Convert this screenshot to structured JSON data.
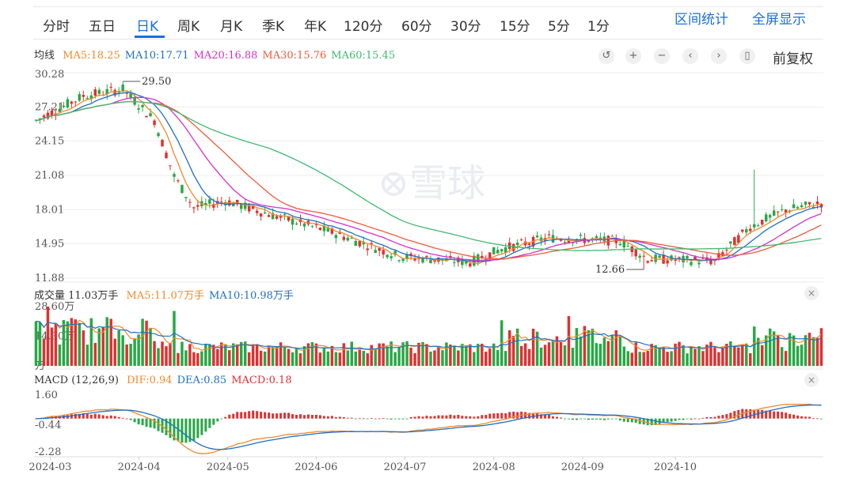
{
  "tabs": [
    {
      "label": "分时",
      "active": false
    },
    {
      "label": "五日",
      "active": false
    },
    {
      "label": "日K",
      "active": true
    },
    {
      "label": "周K",
      "active": false
    },
    {
      "label": "月K",
      "active": false
    },
    {
      "label": "季K",
      "active": false
    },
    {
      "label": "年K",
      "active": false
    },
    {
      "label": "120分",
      "active": false
    },
    {
      "label": "60分",
      "active": false
    },
    {
      "label": "30分",
      "active": false
    },
    {
      "label": "15分",
      "active": false
    },
    {
      "label": "5分",
      "active": false
    },
    {
      "label": "1分",
      "active": false
    }
  ],
  "right_tabs": {
    "interval_stats": "区间统计",
    "fullscreen": "全屏显示"
  },
  "ma_legend": {
    "title": "均线",
    "items": [
      {
        "text": "MA5:18.25",
        "color": "#f08a2c"
      },
      {
        "text": "MA10:17.71",
        "color": "#1f6fc5"
      },
      {
        "text": "MA20:16.88",
        "color": "#d82fc8"
      },
      {
        "text": "MA30:15.76",
        "color": "#ee5a3c"
      },
      {
        "text": "MA60:15.45",
        "color": "#3fba6e"
      }
    ]
  },
  "controls": {
    "icons": [
      "undo-icon",
      "zoom-in-icon",
      "zoom-out-icon",
      "chevron-left-icon",
      "chevron-right-icon",
      "adjust-icon"
    ],
    "glyphs": [
      "↺",
      "+",
      "−",
      "‹",
      "›",
      "▯"
    ],
    "adjust_label": "前复权"
  },
  "vol_legend": {
    "title": "成交量 11.03万手",
    "items": [
      {
        "text": "MA5:11.07万手",
        "color": "#f08a2c"
      },
      {
        "text": "MA10:10.98万手",
        "color": "#1f6fc5"
      }
    ]
  },
  "macd_legend": {
    "title": "MACD (12,26,9)",
    "items": [
      {
        "text": "DIF:0.94",
        "color": "#f08a2c"
      },
      {
        "text": "DEA:0.85",
        "color": "#1f6fc5"
      },
      {
        "text": "MACD:0.18",
        "color": "#e03030"
      }
    ]
  },
  "close_glyph": "×",
  "watermark": "雪球",
  "colors": {
    "up": "#e03030",
    "down": "#27a845",
    "grid": "#eeeeee",
    "axis_text": "#555555"
  },
  "chart_data": {
    "type": "candlestick",
    "x_ticks": [
      "2024-03",
      "2024-04",
      "2024-05",
      "2024-06",
      "2024-07",
      "2024-08",
      "2024-09",
      "2024-10"
    ],
    "x_tick_positions": [
      3.6,
      26.1,
      48.6,
      71.0,
      93.5,
      116.0,
      138.5,
      162.0
    ],
    "n_bars": 200,
    "price_axis": {
      "ticks": [
        "30.28",
        "27.21",
        "24.15",
        "21.08",
        "18.01",
        "14.95",
        "11.88"
      ],
      "range": [
        11.88,
        30.28
      ]
    },
    "annotations": {
      "high": "29.50",
      "high_bar": 22,
      "low": "12.66",
      "low_bar": 154
    },
    "volume_axis": {
      "ticks": [
        "28.60万",
        "14.30万",
        "万"
      ],
      "range": [
        0,
        28.6
      ]
    },
    "macd_axis": {
      "ticks": [
        "1.60",
        "-0.44",
        "-2.28"
      ],
      "range": [
        -2.28,
        1.6
      ]
    },
    "last": {
      "MA5": 18.25,
      "MA10": 17.71,
      "MA20": 16.88,
      "MA30": 15.76,
      "MA60": 15.45,
      "VOL": 11.03,
      "VOL_MA5": 11.07,
      "VOL_MA10": 10.98,
      "DIF": 0.94,
      "DEA": 0.85,
      "MACD": 0.18
    }
  }
}
